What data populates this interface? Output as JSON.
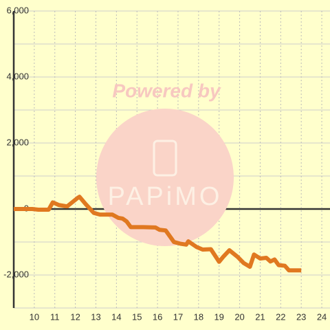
{
  "chart_data": {
    "type": "line",
    "watermark": "Powered by",
    "watermark_logo": "PAPiMO",
    "x": [
      9.0,
      9.9,
      10.2,
      10.7,
      10.9,
      11.2,
      11.6,
      12.1,
      12.2,
      12.5,
      12.9,
      13.2,
      13.8,
      14.1,
      14.3,
      14.5,
      14.7,
      15.3,
      15.9,
      16.1,
      16.4,
      16.8,
      17.1,
      17.4,
      17.5,
      17.9,
      18.2,
      18.6,
      19.0,
      19.2,
      19.5,
      19.9,
      20.2,
      20.5,
      20.7,
      21.0,
      21.3,
      21.5,
      21.7,
      21.9,
      22.2,
      22.4,
      23.0
    ],
    "series": [
      {
        "color": "#e07820",
        "values": [
          0,
          0,
          -20,
          -20,
          200,
          120,
          80,
          330,
          370,
          150,
          -120,
          -170,
          -170,
          -270,
          -290,
          -380,
          -550,
          -550,
          -560,
          -630,
          -650,
          -1000,
          -1050,
          -1080,
          -980,
          -1150,
          -1230,
          -1220,
          -1600,
          -1450,
          -1250,
          -1450,
          -1640,
          -1750,
          -1380,
          -1500,
          -1480,
          -1590,
          -1530,
          -1700,
          -1720,
          -1860,
          -1860
        ]
      }
    ],
    "xlim": [
      9,
      24.4
    ],
    "xticks": [
      10,
      11,
      12,
      13,
      14,
      15,
      16,
      17,
      18,
      19,
      20,
      21,
      22,
      23,
      24
    ],
    "ylim": [
      -3000,
      6000
    ],
    "yticks": [
      {
        "value": -2000,
        "label": "-2,000"
      },
      0,
      {
        "value": 2000,
        "label": "2,000"
      },
      {
        "value": 4000,
        "label": "4,000"
      },
      {
        "value": 6000,
        "label": "6,000"
      }
    ],
    "y_minor_ticks": [
      -3000,
      -1000,
      1000,
      3000,
      5000
    ],
    "grid": true
  }
}
